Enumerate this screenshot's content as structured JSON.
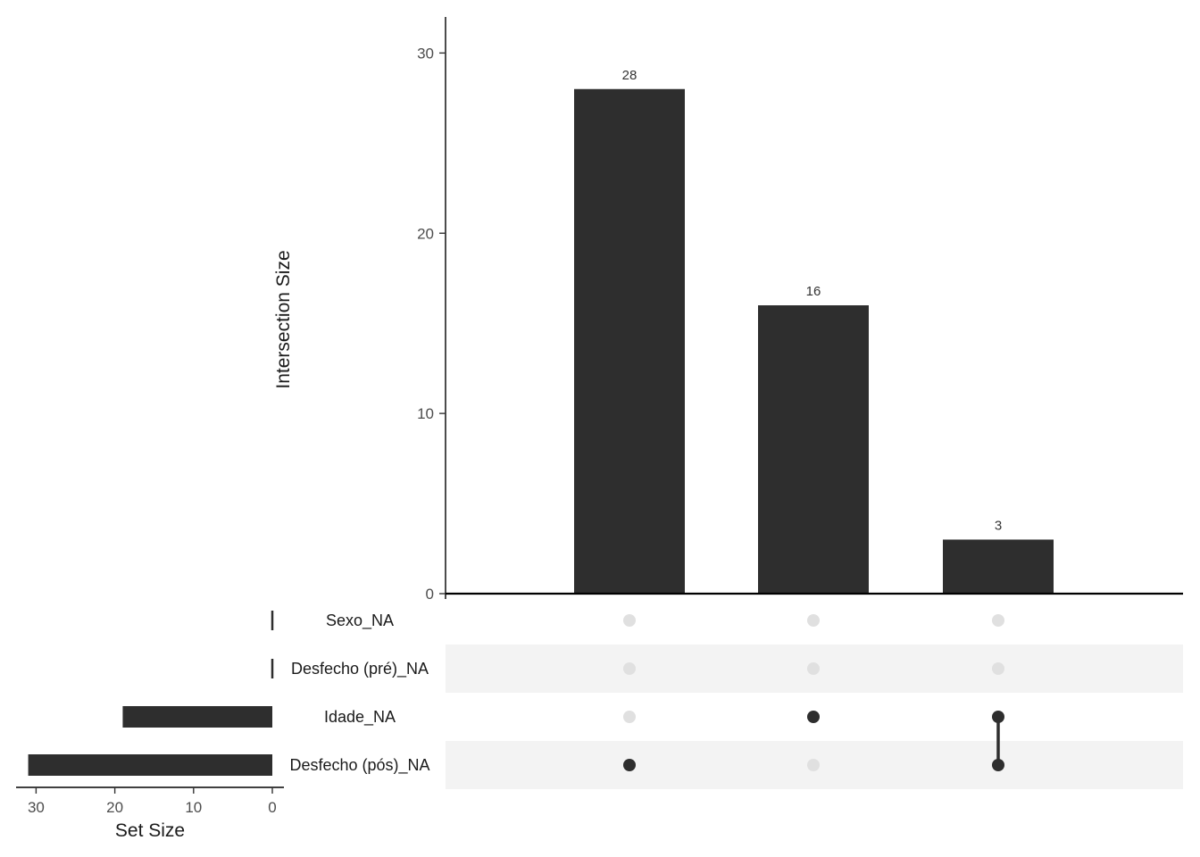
{
  "chart_data": {
    "type": "upset",
    "intersections": {
      "ylabel": "Intersection Size",
      "ylim": [
        0,
        32
      ],
      "yticks": [
        0,
        10,
        20,
        30
      ],
      "values": [
        28,
        16,
        3
      ],
      "members": [
        [
          "Desfecho (pós)_NA"
        ],
        [
          "Idade_NA"
        ],
        [
          "Idade_NA",
          "Desfecho (pós)_NA"
        ]
      ]
    },
    "sets": {
      "names": [
        "Sexo_NA",
        "Desfecho (pré)_NA",
        "Idade_NA",
        "Desfecho (pós)_NA"
      ],
      "sizes": [
        0,
        0,
        19,
        31
      ],
      "xlabel": "Set Size",
      "xticks": [
        30,
        20,
        10,
        0
      ],
      "xlim": [
        32,
        0
      ]
    },
    "colors": {
      "bar": "#2e2e2e",
      "dot_active": "#2e2e2e",
      "dot_inactive": "#e0e0e0",
      "stripe": "#f3f3f3"
    }
  }
}
